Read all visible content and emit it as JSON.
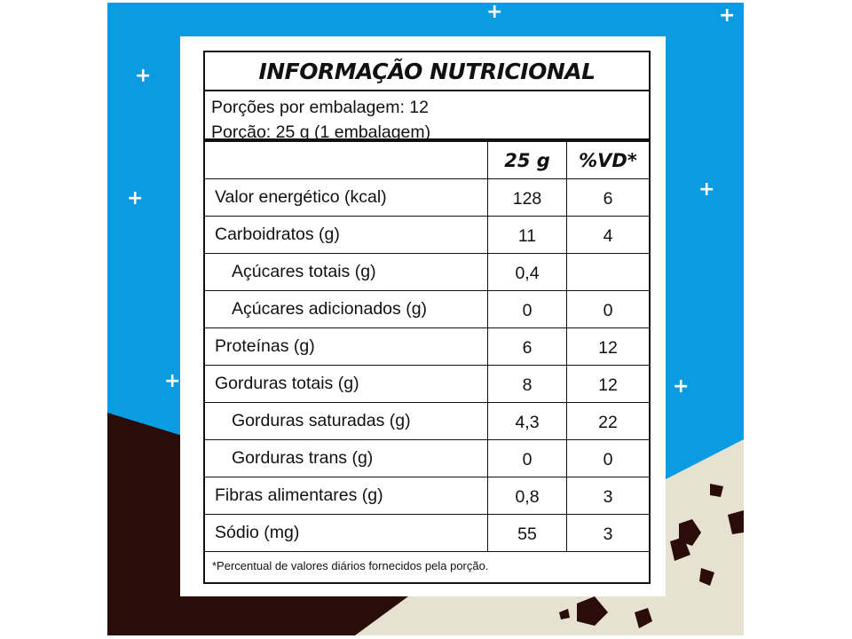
{
  "colors": {
    "blue": "#0a9be0",
    "brown": "#2a0c08",
    "beige": "#e6e1d0"
  },
  "label": {
    "title": "INFORMAÇÃO NUTRICIONAL",
    "servings_per_package": "Porções por embalagem: 12",
    "serving_size": "Porção: 25 g (1 embalagem)",
    "col_amount": "25 g",
    "col_dv": "%VD*",
    "rows": [
      {
        "name": "Valor energético (kcal)",
        "amount": "128",
        "dv": "6",
        "sub": false
      },
      {
        "name": "Carboidratos (g)",
        "amount": "11",
        "dv": "4",
        "sub": false
      },
      {
        "name": "Açúcares totais (g)",
        "amount": "0,4",
        "dv": "",
        "sub": true
      },
      {
        "name": "Açúcares adicionados (g)",
        "amount": "0",
        "dv": "0",
        "sub": true
      },
      {
        "name": "Proteínas (g)",
        "amount": "6",
        "dv": "12",
        "sub": false
      },
      {
        "name": "Gorduras totais (g)",
        "amount": "8",
        "dv": "12",
        "sub": false
      },
      {
        "name": "Gorduras saturadas (g)",
        "amount": "4,3",
        "dv": "22",
        "sub": true
      },
      {
        "name": "Gorduras trans (g)",
        "amount": "0",
        "dv": "0",
        "sub": true
      },
      {
        "name": "Fibras alimentares (g)",
        "amount": "0,8",
        "dv": "3",
        "sub": false
      },
      {
        "name": "Sódio (mg)",
        "amount": "55",
        "dv": "3",
        "sub": false
      }
    ],
    "footnote": "*Percentual de valores diários fornecidos pela porção."
  }
}
